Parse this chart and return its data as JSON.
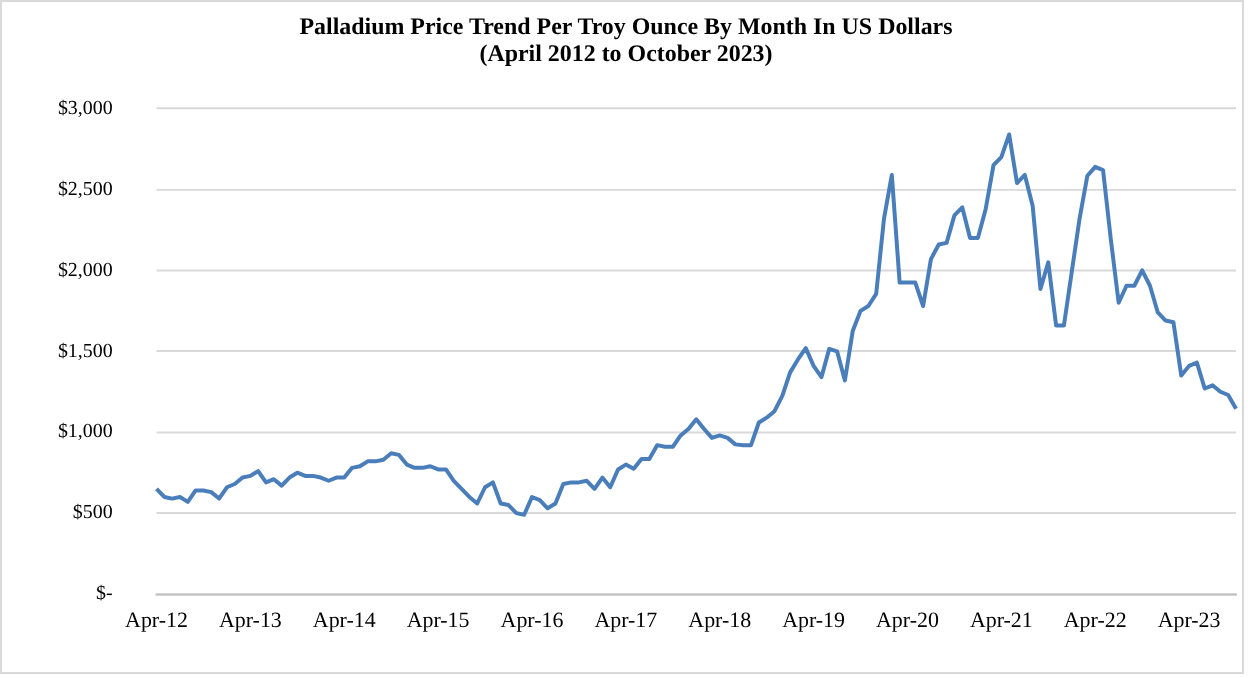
{
  "chart_data": {
    "type": "line",
    "title": "Palladium Price Trend Per Troy Ounce By Month In US Dollars\n(April 2012 to October 2023)",
    "categories": [
      "Apr-12",
      null,
      null,
      null,
      null,
      null,
      null,
      null,
      null,
      null,
      null,
      null,
      "Apr-13",
      null,
      null,
      null,
      null,
      null,
      null,
      null,
      null,
      null,
      null,
      null,
      "Apr-14",
      null,
      null,
      null,
      null,
      null,
      null,
      null,
      null,
      null,
      null,
      null,
      "Apr-15",
      null,
      null,
      null,
      null,
      null,
      null,
      null,
      null,
      null,
      null,
      null,
      "Apr-16",
      null,
      null,
      null,
      null,
      null,
      null,
      null,
      null,
      null,
      null,
      null,
      "Apr-17",
      null,
      null,
      null,
      null,
      null,
      null,
      null,
      null,
      null,
      null,
      null,
      "Apr-18",
      null,
      null,
      null,
      null,
      null,
      null,
      null,
      null,
      null,
      null,
      null,
      "Apr-19",
      null,
      null,
      null,
      null,
      null,
      null,
      null,
      null,
      null,
      null,
      null,
      "Apr-20",
      null,
      null,
      null,
      null,
      null,
      null,
      null,
      null,
      null,
      null,
      null,
      "Apr-21",
      null,
      null,
      null,
      null,
      null,
      null,
      null,
      null,
      null,
      null,
      null,
      "Apr-22",
      null,
      null,
      null,
      null,
      null,
      null,
      null,
      null,
      null,
      null,
      null,
      "Apr-23",
      null,
      null,
      null,
      null,
      null,
      null
    ],
    "series": [
      {
        "color": "#4a7ebb",
        "values": [
          650,
          600,
          590,
          600,
          570,
          640,
          640,
          630,
          590,
          660,
          680,
          720,
          730,
          760,
          690,
          710,
          670,
          720,
          750,
          730,
          730,
          720,
          700,
          720,
          720,
          780,
          790,
          820,
          820,
          830,
          870,
          860,
          800,
          780,
          780,
          790,
          770,
          770,
          700,
          650,
          600,
          560,
          660,
          690,
          560,
          550,
          500,
          490,
          600,
          580,
          530,
          560,
          680,
          690,
          690,
          700,
          650,
          720,
          660,
          770,
          800,
          775,
          835,
          835,
          920,
          910,
          910,
          980,
          1020,
          1080,
          1020,
          965,
          980,
          965,
          925,
          920,
          920,
          1060,
          1090,
          1130,
          1225,
          1370,
          1450,
          1520,
          1410,
          1340,
          1515,
          1500,
          1320,
          1625,
          1750,
          1780,
          1855,
          2320,
          2590,
          1925,
          1925,
          1925,
          1780,
          2070,
          2160,
          2170,
          2340,
          2390,
          2200,
          2200,
          2380,
          2650,
          2700,
          2840,
          2540,
          2590,
          2400,
          1885,
          2050,
          1660,
          1660,
          1990,
          2320,
          2585,
          2640,
          2620,
          2190,
          1800,
          1905,
          1905,
          2000,
          1905,
          1740,
          1690,
          1680,
          1350,
          1410,
          1430,
          1270,
          1290,
          1250,
          1230,
          1145
        ]
      }
    ],
    "ylim": [
      0,
      3000
    ],
    "yticks": [
      {
        "value": 0,
        "label": "$-"
      },
      {
        "value": 500,
        "label": "$500"
      },
      {
        "value": 1000,
        "label": "$1,000"
      },
      {
        "value": 1500,
        "label": "$1,500"
      },
      {
        "value": 2000,
        "label": "$2,000"
      },
      {
        "value": 2500,
        "label": "$2,500"
      },
      {
        "value": 3000,
        "label": "$3,000"
      }
    ],
    "grid": "y",
    "legend": false,
    "marker": "none",
    "line_style": "solid"
  }
}
